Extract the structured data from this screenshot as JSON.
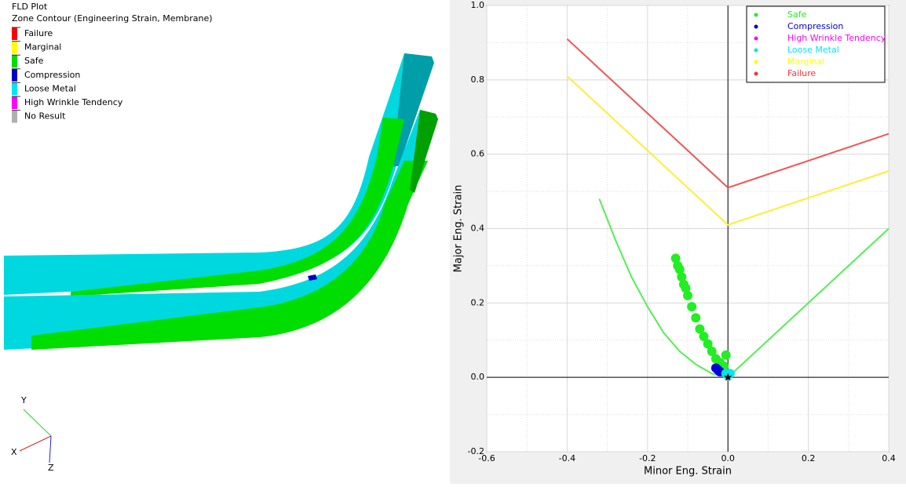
{
  "viewport": {
    "title": "FLD Plot",
    "subtitle": "Zone Contour (Engineering Strain, Membrane)",
    "legend": [
      {
        "label": "Failure",
        "color": "#ff0000"
      },
      {
        "label": "Marginal",
        "color": "#ffff00"
      },
      {
        "label": "Safe",
        "color": "#00dd00"
      },
      {
        "label": "Compression",
        "color": "#0000cc"
      },
      {
        "label": "Loose Metal",
        "color": "#00e5ee"
      },
      {
        "label": "High Wrinkle Tendency",
        "color": "#ff00ff"
      },
      {
        "label": "No Result",
        "color": "#b0b0b0"
      }
    ],
    "triad": {
      "x": "X",
      "y": "Y",
      "z": "Z"
    }
  },
  "chart_data": {
    "type": "scatter",
    "x_label": "Minor Eng. Strain",
    "y_label": "Major Eng. Strain",
    "xlim": [
      -0.6,
      0.4
    ],
    "ylim": [
      -0.2,
      1.0
    ],
    "xticks": [
      -0.6,
      -0.4,
      -0.2,
      {
        "value": 0,
        "label": "0.0"
      },
      0.2,
      0.4
    ],
    "yticks": [
      -0.2,
      {
        "value": 0,
        "label": "0.0"
      },
      0.2,
      0.4,
      0.6,
      0.8,
      {
        "value": 1,
        "label": "1.0"
      }
    ],
    "grid": true,
    "legend": "upper right",
    "series": [
      {
        "name": "Safe",
        "color": "#22ee22",
        "x": [
          -0.13,
          -0.125,
          -0.12,
          -0.115,
          -0.11,
          -0.105,
          -0.1,
          -0.09,
          -0.08,
          -0.07,
          -0.06,
          -0.05,
          -0.04,
          -0.03,
          -0.02,
          -0.01,
          -0.005
        ],
        "y": [
          0.32,
          0.3,
          0.29,
          0.27,
          0.25,
          0.24,
          0.22,
          0.19,
          0.16,
          0.13,
          0.11,
          0.09,
          0.07,
          0.05,
          0.04,
          0.03,
          0.06
        ]
      },
      {
        "name": "Compression",
        "color": "#0000dd",
        "x": [
          -0.03,
          -0.025,
          -0.02
        ],
        "y": [
          0.025,
          0.02,
          0.015
        ]
      },
      {
        "name": "High Wrinkle Tendency",
        "color": "#ff00ff",
        "x": [],
        "y": []
      },
      {
        "name": "Loose Metal",
        "color": "#00e5ee",
        "x": [
          -0.005,
          0,
          0.005
        ],
        "y": [
          0.01,
          0.005,
          0.01
        ]
      },
      {
        "name": "Marginal",
        "color": "#ffff00",
        "x": [],
        "y": []
      },
      {
        "name": "Failure",
        "color": "#ff3333",
        "x": [],
        "y": []
      }
    ],
    "curves": [
      {
        "color": "#f05555",
        "x": [
          -0.4,
          0,
          0.4
        ],
        "y": [
          0.91,
          0.51,
          0.655
        ]
      },
      {
        "color": "#ffee33",
        "x": [
          -0.4,
          0,
          0.4
        ],
        "y": [
          0.81,
          0.41,
          0.555
        ]
      },
      {
        "color": "#55ee55",
        "x": [
          -0.32,
          -0.28,
          -0.24,
          -0.2,
          -0.16,
          -0.12,
          -0.08,
          -0.04,
          0,
          0.4
        ],
        "y": [
          0.48,
          0.37,
          0.27,
          0.19,
          0.12,
          0.07,
          0.035,
          0.01,
          0,
          0.4
        ]
      }
    ],
    "marker": {
      "x": 0,
      "y": 0,
      "color": "#000000"
    }
  }
}
